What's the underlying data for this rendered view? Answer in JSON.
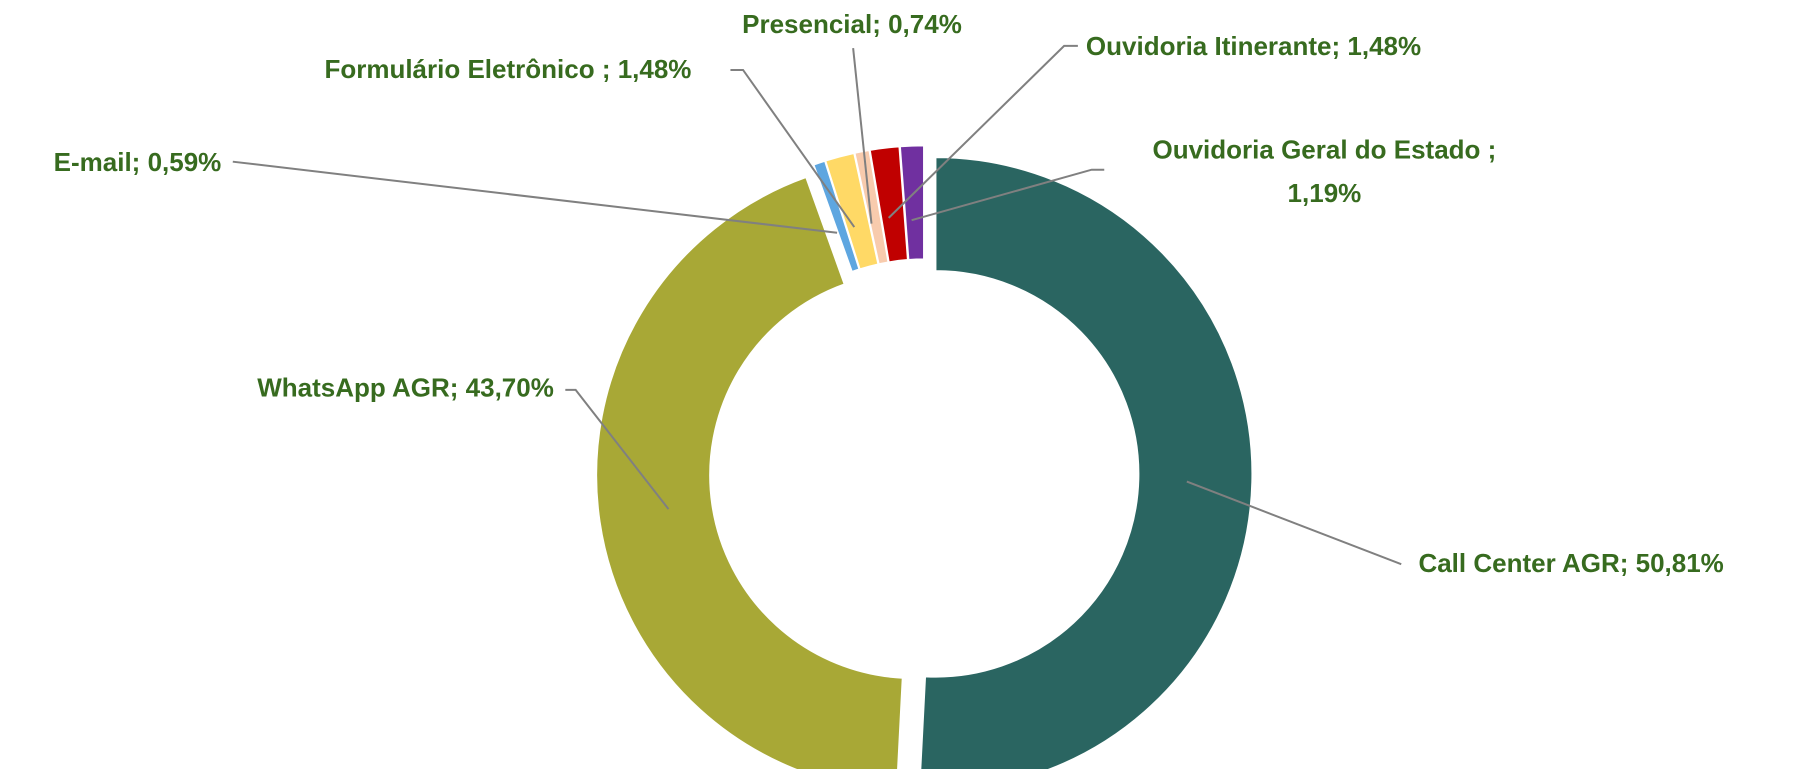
{
  "chart_data": {
    "type": "donut",
    "values": [
      50.81,
      43.7,
      0.59,
      1.48,
      0.74,
      1.48,
      1.19
    ],
    "value_labels": [
      "Call Center AGR; 50,81%",
      "WhatsApp AGR; 43,70%",
      "E-mail; 0,59%",
      "Formulário Eletrônico ; 1,48%",
      "Presencial; 0,74%",
      "Ouvidoria Itinerante; 1,48%",
      "Ouvidoria Geral do Estado ; 1,19%"
    ],
    "colors": [
      "#2a6561",
      "#a8a836",
      "#5ea6e0",
      "#ffd966",
      "#f8cbad",
      "#c00000",
      "#7030a0"
    ]
  }
}
